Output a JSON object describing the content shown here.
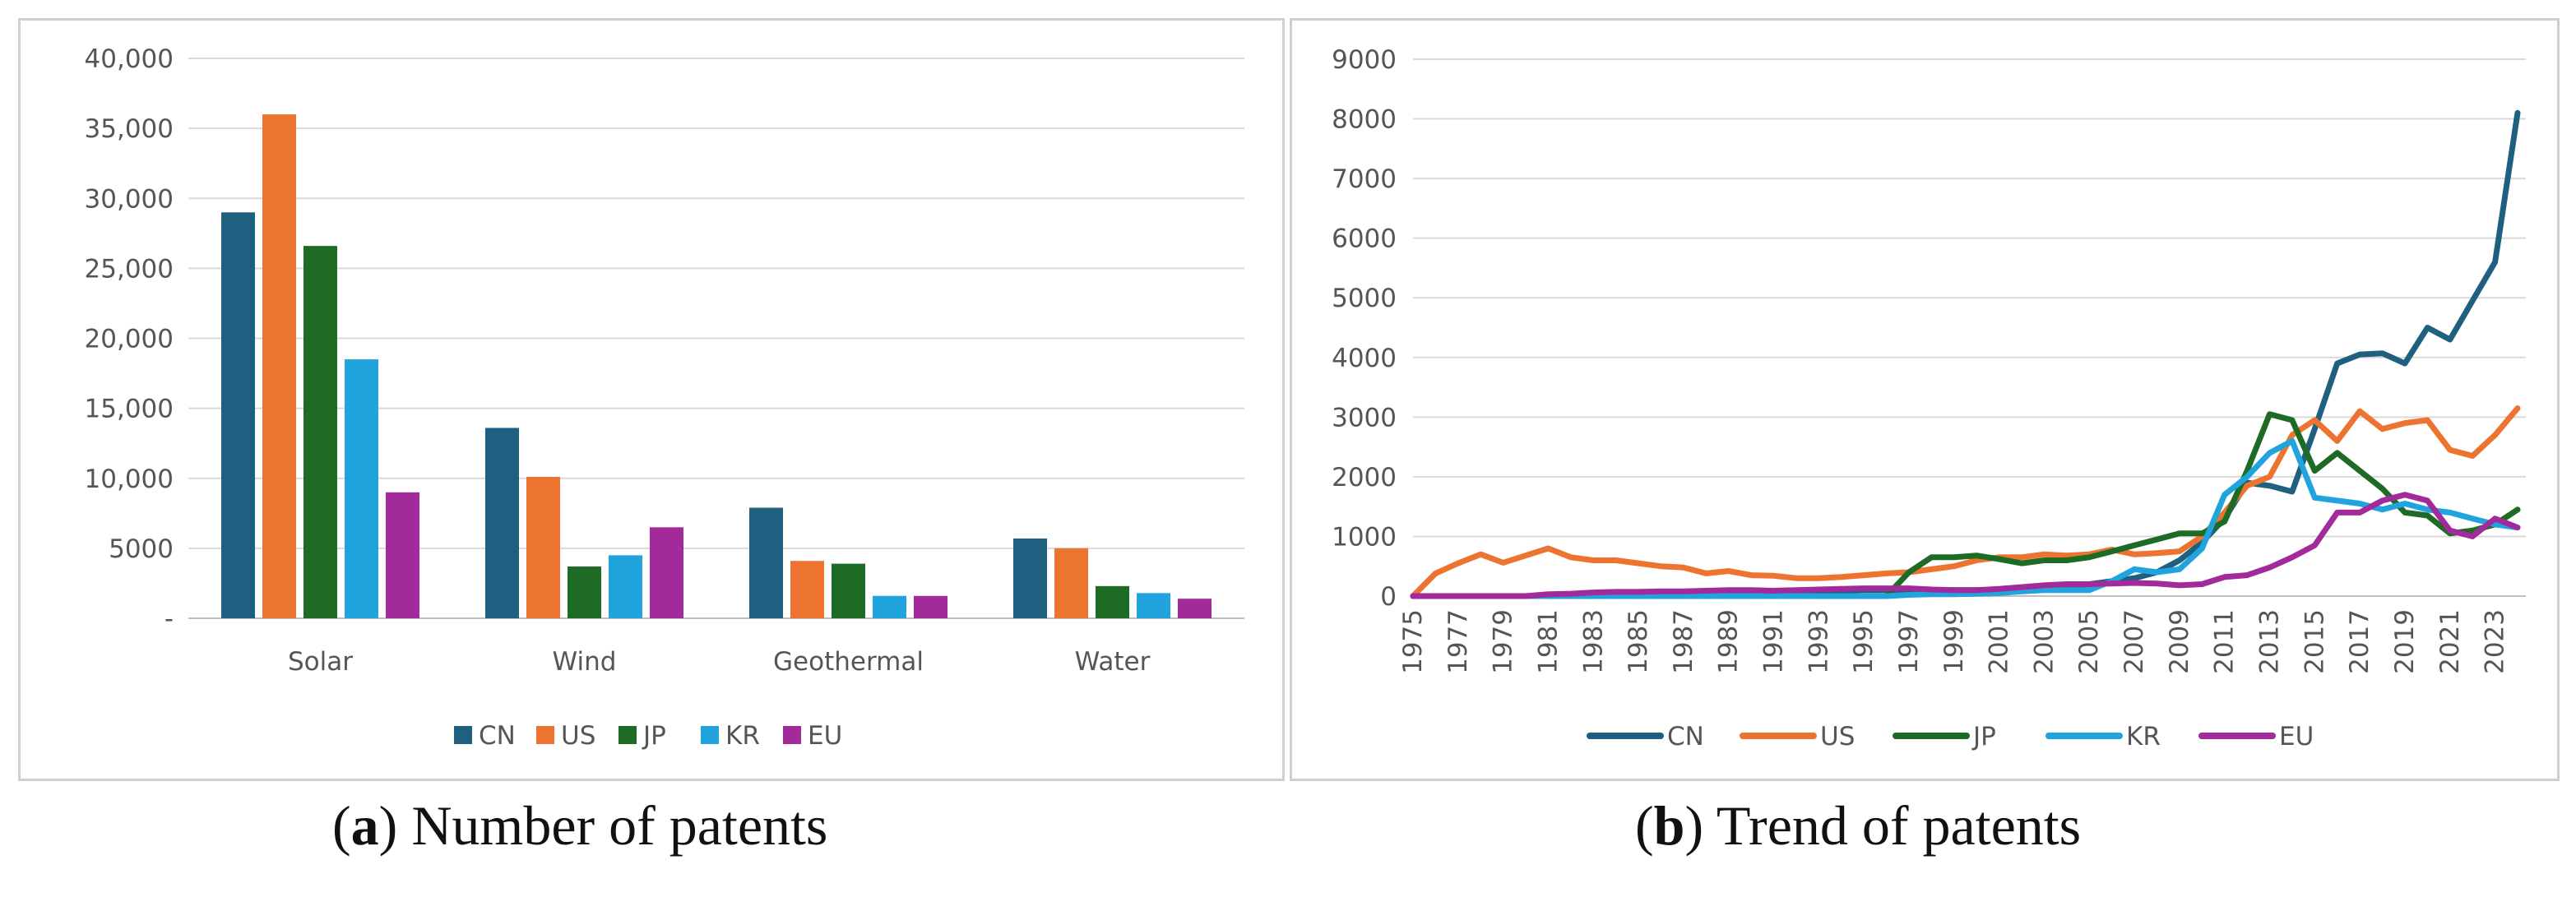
{
  "chart_data": [
    {
      "type": "bar",
      "title": "",
      "caption": {
        "label": "a",
        "text": "Number of patents"
      },
      "categories": [
        "Solar",
        "Wind",
        "Geothermal",
        "Water"
      ],
      "series": [
        {
          "name": "CN",
          "color": "#1f5f7f",
          "values": [
            29000,
            13600,
            7900,
            5700
          ]
        },
        {
          "name": "US",
          "color": "#ed7430",
          "values": [
            36000,
            10100,
            4100,
            5000
          ]
        },
        {
          "name": "JP",
          "color": "#1e6b25",
          "values": [
            26600,
            3700,
            3900,
            2300
          ]
        },
        {
          "name": "KR",
          "color": "#21a3de",
          "values": [
            18500,
            4500,
            1600,
            1800
          ]
        },
        {
          "name": "EU",
          "color": "#a22a9a",
          "values": [
            9000,
            6500,
            1600,
            1400
          ]
        }
      ],
      "ylim": [
        0,
        40000
      ],
      "yticks": [
        "-",
        "5000",
        "10,000",
        "15,000",
        "20,000",
        "25,000",
        "30,000",
        "35,000",
        "40,000"
      ],
      "xlabel": "",
      "ylabel": "",
      "grid": true,
      "legend": "bottom"
    },
    {
      "type": "line",
      "title": "",
      "caption": {
        "label": "b",
        "text": "Trend of patents"
      },
      "x": [
        1975,
        1976,
        1977,
        1978,
        1979,
        1980,
        1981,
        1982,
        1983,
        1984,
        1985,
        1986,
        1987,
        1988,
        1989,
        1990,
        1991,
        1992,
        1993,
        1994,
        1995,
        1996,
        1997,
        1998,
        1999,
        2000,
        2001,
        2002,
        2003,
        2004,
        2005,
        2006,
        2007,
        2008,
        2009,
        2010,
        2011,
        2012,
        2013,
        2014,
        2015,
        2016,
        2017,
        2018,
        2019,
        2020,
        2021,
        2022,
        2023,
        2024
      ],
      "xtick_labels": [
        "1975",
        "1977",
        "1979",
        "1981",
        "1983",
        "1985",
        "1987",
        "1989",
        "1991",
        "1993",
        "1995",
        "1997",
        "1999",
        "2001",
        "2003",
        "2005",
        "2007",
        "2009",
        "2011",
        "2013",
        "2015",
        "2017",
        "2019",
        "2021",
        "2023"
      ],
      "series": [
        {
          "name": "CN",
          "color": "#1f5f7f",
          "values": [
            0,
            0,
            0,
            0,
            0,
            0,
            0,
            20,
            30,
            40,
            50,
            50,
            60,
            60,
            60,
            60,
            60,
            70,
            80,
            90,
            100,
            100,
            100,
            100,
            100,
            100,
            100,
            100,
            120,
            150,
            200,
            250,
            300,
            400,
            600,
            900,
            1300,
            1900,
            1850,
            1750,
            2800,
            3900,
            4050,
            4070,
            3900,
            4500,
            4300,
            4950,
            5600,
            8100
          ]
        },
        {
          "name": "US",
          "color": "#ed7430",
          "values": [
            0,
            380,
            550,
            700,
            560,
            680,
            800,
            650,
            600,
            600,
            550,
            500,
            480,
            380,
            420,
            350,
            340,
            300,
            300,
            320,
            350,
            380,
            400,
            450,
            500,
            600,
            650,
            650,
            700,
            680,
            700,
            780,
            700,
            720,
            750,
            1000,
            1400,
            1850,
            2000,
            2700,
            2950,
            2600,
            3100,
            2800,
            2900,
            2950,
            2450,
            2350,
            2700,
            3150
          ]
        },
        {
          "name": "JP",
          "color": "#1e6b25",
          "values": [
            0,
            0,
            0,
            0,
            0,
            0,
            0,
            0,
            0,
            0,
            0,
            0,
            0,
            0,
            0,
            0,
            0,
            0,
            0,
            0,
            0,
            0,
            400,
            650,
            650,
            680,
            620,
            550,
            600,
            600,
            650,
            750,
            850,
            950,
            1050,
            1050,
            1250,
            2100,
            3050,
            2950,
            2100,
            2400,
            2100,
            1800,
            1400,
            1350,
            1050,
            1100,
            1200,
            1450
          ]
        },
        {
          "name": "KR",
          "color": "#21a3de",
          "values": [
            0,
            0,
            0,
            0,
            0,
            0,
            0,
            0,
            0,
            0,
            0,
            0,
            0,
            0,
            0,
            0,
            0,
            0,
            0,
            0,
            0,
            0,
            20,
            30,
            30,
            40,
            50,
            80,
            100,
            100,
            100,
            250,
            450,
            400,
            450,
            800,
            1700,
            2000,
            2400,
            2600,
            1650,
            1600,
            1550,
            1450,
            1550,
            1450,
            1400,
            1300,
            1200,
            1150
          ]
        },
        {
          "name": "EU",
          "color": "#a22a9a",
          "values": [
            0,
            0,
            0,
            0,
            0,
            0,
            30,
            40,
            60,
            70,
            70,
            80,
            80,
            90,
            100,
            100,
            90,
            100,
            110,
            120,
            130,
            130,
            130,
            110,
            100,
            100,
            120,
            150,
            180,
            200,
            200,
            210,
            220,
            210,
            180,
            200,
            320,
            350,
            480,
            650,
            850,
            1400,
            1400,
            1600,
            1700,
            1600,
            1100,
            1000,
            1300,
            1150
          ]
        }
      ],
      "ylim": [
        0,
        9000
      ],
      "yticks": [
        "0",
        "1000",
        "2000",
        "3000",
        "4000",
        "5000",
        "6000",
        "7000",
        "8000",
        "9000"
      ],
      "xlabel": "",
      "ylabel": "",
      "grid": true,
      "legend": "bottom"
    }
  ]
}
